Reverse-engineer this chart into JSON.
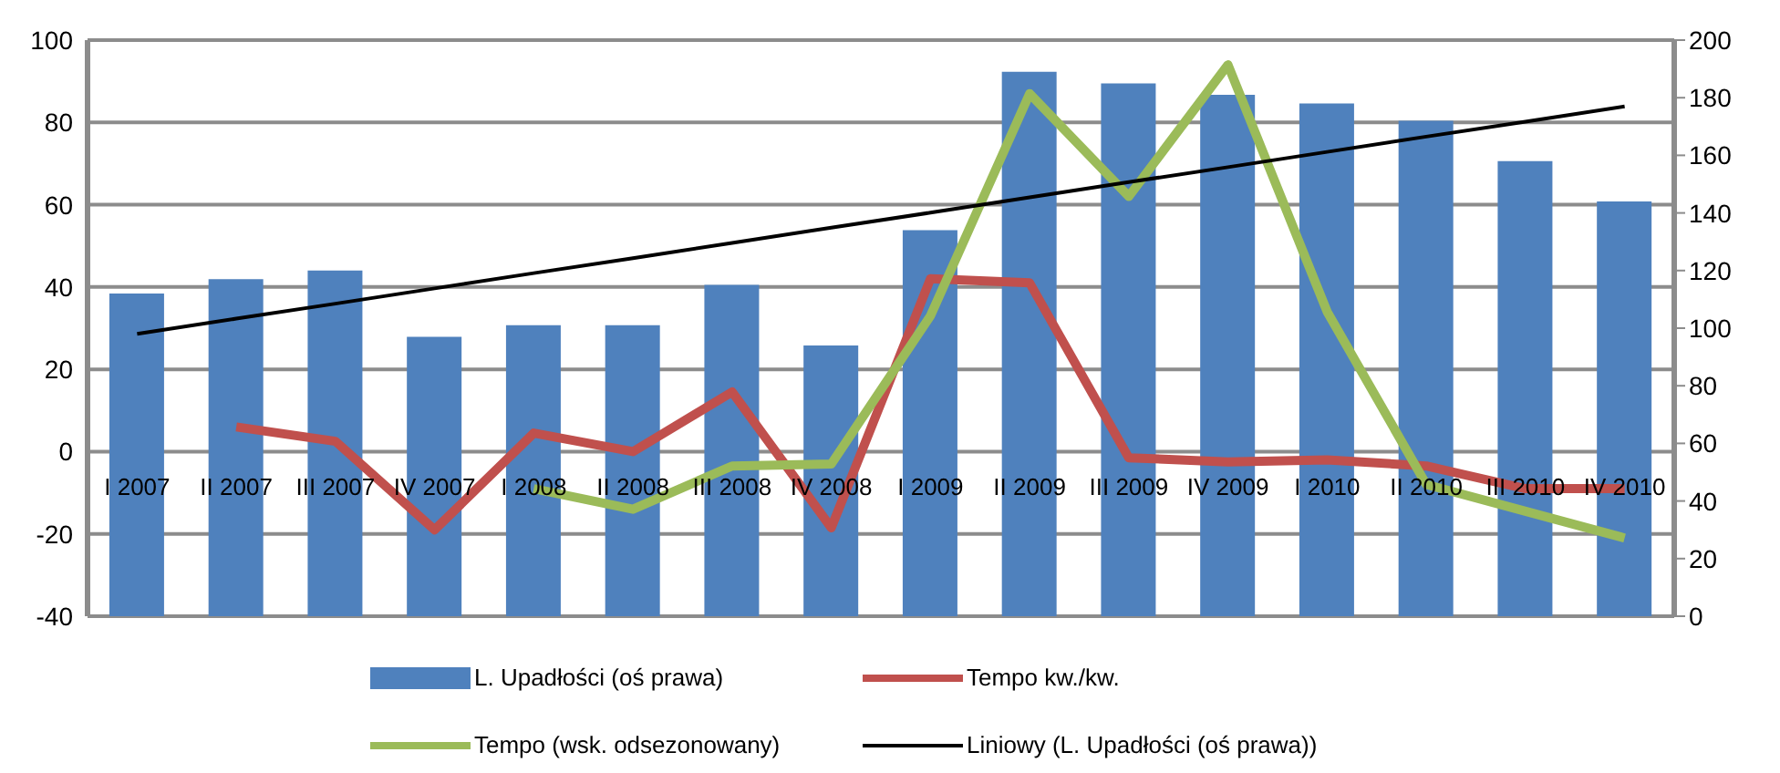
{
  "chart_data": {
    "type": "bar",
    "categories": [
      "I 2007",
      "II 2007",
      "III 2007",
      "IV 2007",
      "I 2008",
      "II 2008",
      "III 2008",
      "IV 2008",
      "I 2009",
      "II 2009",
      "III 2009",
      "IV 2009",
      "I 2010",
      "II 2010",
      "III 2010",
      "IV 2010"
    ],
    "series": [
      {
        "name": "L. Upadłości (oś prawa)",
        "axis": "y2",
        "color": "#4f81bd",
        "values": [
          112,
          117,
          120,
          97,
          101,
          101,
          115,
          94,
          134,
          189,
          185,
          181,
          178,
          172,
          158,
          144
        ]
      },
      {
        "name": "Tempo kw./kw.",
        "type": "line",
        "color": "#c0504d",
        "values": [
          null,
          6,
          2.5,
          -19,
          4.5,
          0,
          14.5,
          -18.5,
          42,
          41,
          -1.5,
          -2.5,
          -2,
          -3.5,
          -9,
          -9
        ]
      },
      {
        "name": "Tempo (wsk. odsezonowany)",
        "type": "line",
        "color": "#9bbb59",
        "values": [
          null,
          null,
          null,
          null,
          -9,
          -14,
          -3.5,
          -3,
          33,
          87,
          62,
          94,
          34,
          -8,
          -14.5,
          -21
        ]
      },
      {
        "name": "Liniowy (L. Upadłości (oś prawa))",
        "type": "line",
        "axis": "y2",
        "color": "#000000",
        "values": [
          98,
          103.3,
          108.5,
          113.8,
          119.1,
          124.3,
          129.6,
          134.9,
          140.1,
          145.4,
          150.7,
          155.9,
          161.2,
          166.5,
          171.7,
          177
        ]
      }
    ],
    "ylim": [
      -40,
      100
    ],
    "yticks": [
      -40,
      -20,
      0,
      20,
      40,
      60,
      80,
      100
    ],
    "y2lim": [
      0,
      200
    ],
    "y2ticks": [
      0,
      20,
      40,
      60,
      80,
      100,
      120,
      140,
      160,
      180,
      200
    ],
    "grid": "y",
    "legend": "bottom",
    "marker": "none"
  }
}
